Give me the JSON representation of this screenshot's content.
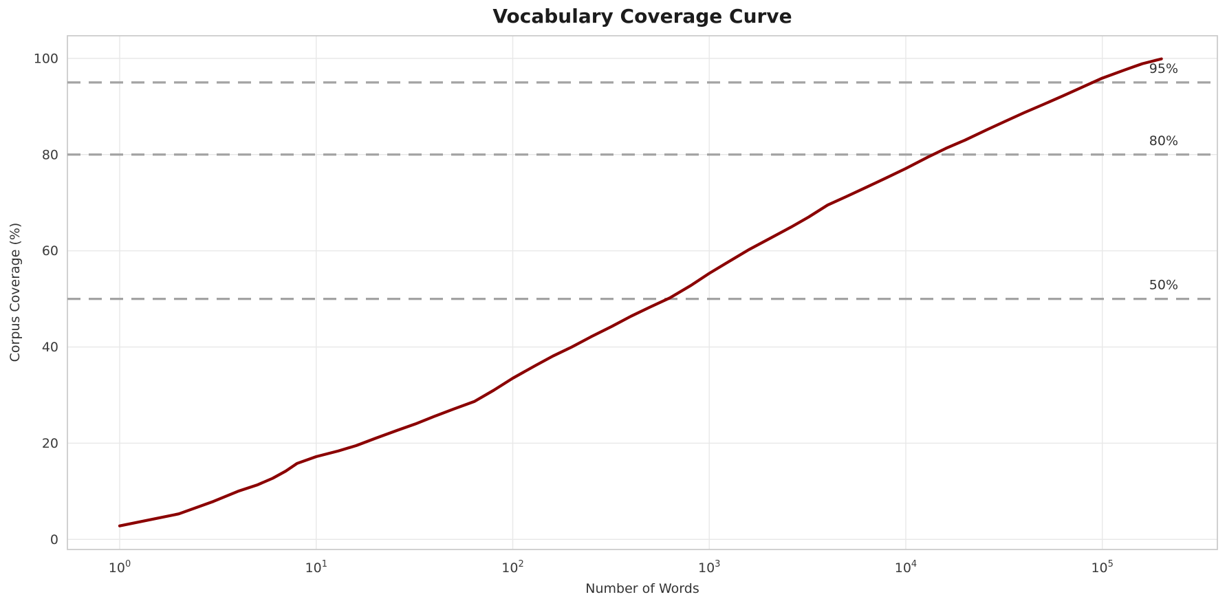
{
  "chart_data": {
    "type": "line",
    "title": "Vocabulary Coverage Curve",
    "xlabel": "Number of Words",
    "ylabel": "Corpus Coverage (%)",
    "x_scale": "log",
    "xlim": [
      0.542,
      385000
    ],
    "ylim": [
      -2.1,
      104.7
    ],
    "grid": true,
    "legend": false,
    "x_ticks": [
      {
        "base": "10",
        "exp": "0",
        "value": 1
      },
      {
        "base": "10",
        "exp": "1",
        "value": 10
      },
      {
        "base": "10",
        "exp": "2",
        "value": 100
      },
      {
        "base": "10",
        "exp": "3",
        "value": 1000
      },
      {
        "base": "10",
        "exp": "4",
        "value": 10000
      },
      {
        "base": "10",
        "exp": "5",
        "value": 100000
      }
    ],
    "y_ticks": [
      0,
      20,
      40,
      60,
      80,
      100
    ],
    "series": [
      {
        "name": "corpus-coverage",
        "color": "#8b0000",
        "points": [
          [
            1,
            2.8
          ],
          [
            2,
            5.3
          ],
          [
            3,
            7.9
          ],
          [
            4,
            10.0
          ],
          [
            5,
            11.3
          ],
          [
            6,
            12.7
          ],
          [
            7,
            14.2
          ],
          [
            8,
            15.8
          ],
          [
            10,
            17.2
          ],
          [
            13,
            18.4
          ],
          [
            16,
            19.5
          ],
          [
            20,
            21.0
          ],
          [
            26,
            22.7
          ],
          [
            32,
            24.0
          ],
          [
            40,
            25.6
          ],
          [
            50,
            27.1
          ],
          [
            64,
            28.7
          ],
          [
            80,
            31.0
          ],
          [
            100,
            33.5
          ],
          [
            130,
            36.1
          ],
          [
            160,
            38.1
          ],
          [
            200,
            40.0
          ],
          [
            250,
            42.1
          ],
          [
            320,
            44.3
          ],
          [
            400,
            46.4
          ],
          [
            500,
            48.3
          ],
          [
            630,
            50.2
          ],
          [
            800,
            52.7
          ],
          [
            1000,
            55.3
          ],
          [
            1300,
            58.1
          ],
          [
            1600,
            60.3
          ],
          [
            2000,
            62.4
          ],
          [
            2600,
            64.9
          ],
          [
            3200,
            67.0
          ],
          [
            4000,
            69.5
          ],
          [
            5000,
            71.3
          ],
          [
            6300,
            73.2
          ],
          [
            8000,
            75.2
          ],
          [
            10000,
            77.1
          ],
          [
            13000,
            79.5
          ],
          [
            16000,
            81.3
          ],
          [
            20000,
            83.0
          ],
          [
            26000,
            85.2
          ],
          [
            32000,
            86.9
          ],
          [
            40000,
            88.7
          ],
          [
            50000,
            90.4
          ],
          [
            63000,
            92.2
          ],
          [
            80000,
            94.1
          ],
          [
            100000,
            95.9
          ],
          [
            130000,
            97.6
          ],
          [
            160000,
            98.9
          ],
          [
            200000,
            99.9
          ]
        ]
      }
    ],
    "reference_lines": [
      {
        "y": 50,
        "label": "50%"
      },
      {
        "y": 80,
        "label": "80%"
      },
      {
        "y": 95,
        "label": "95%"
      }
    ],
    "colors": {
      "line": "#8b0000",
      "reference_line": "#a3a3a3",
      "grid": "#e8e8e8",
      "spine": "#cccccc",
      "tick_text": "#3a3a3a",
      "label_text": "#333333",
      "title_text": "#1c1c1c",
      "background": "#ffffff"
    }
  }
}
